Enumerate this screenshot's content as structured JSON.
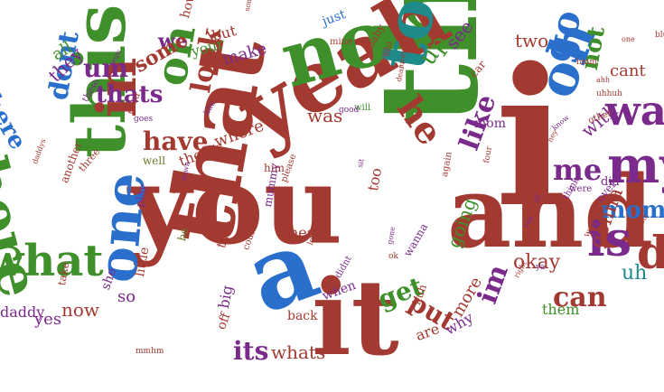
{
  "palette": {
    "red": "#a33a31",
    "green": "#3f8f2a",
    "blue": "#2a6fcc",
    "purple": "#7a2a8a",
    "teal": "#1f8a8a",
    "olive": "#6a7a2a",
    "darkred": "#7a2a2a",
    "navy": "#2a3f8f"
  },
  "words": [
    {
      "t": "i",
      "c": "red"
    },
    {
      "t": "the",
      "c": "green"
    },
    {
      "t": "and",
      "c": "red"
    },
    {
      "t": "you",
      "c": "red"
    },
    {
      "t": "a",
      "c": "blue"
    },
    {
      "t": "it",
      "c": "red"
    },
    {
      "t": "yeah",
      "c": "red"
    },
    {
      "t": "no",
      "c": "green"
    },
    {
      "t": "that",
      "c": "red"
    },
    {
      "t": "this",
      "c": "green"
    },
    {
      "t": "to",
      "c": "teal"
    },
    {
      "t": "oh",
      "c": "blue"
    },
    {
      "t": "one",
      "c": "blue"
    },
    {
      "t": "in",
      "c": "red"
    },
    {
      "t": "there",
      "c": "green"
    },
    {
      "t": "my",
      "c": "purple"
    },
    {
      "t": "is",
      "c": "purple"
    },
    {
      "t": "what",
      "c": "green"
    },
    {
      "t": "do",
      "c": "red"
    },
    {
      "t": "on",
      "c": "green"
    },
    {
      "t": "go",
      "c": "blue"
    },
    {
      "t": "he",
      "c": "red"
    },
    {
      "t": "want",
      "c": "purple"
    },
    {
      "t": "have",
      "c": "red"
    },
    {
      "t": "like",
      "c": "purple"
    },
    {
      "t": "me",
      "c": "purple"
    },
    {
      "t": "look",
      "c": "red"
    },
    {
      "t": "we",
      "c": "purple"
    },
    {
      "t": "dont",
      "c": "blue"
    },
    {
      "t": "thats",
      "c": "purple"
    },
    {
      "t": "um",
      "c": "purple"
    },
    {
      "t": "can",
      "c": "red"
    },
    {
      "t": "not",
      "c": "green"
    },
    {
      "t": "mommy",
      "c": "blue"
    },
    {
      "t": "get",
      "c": "green"
    },
    {
      "t": "put",
      "c": "red"
    },
    {
      "t": "its",
      "c": "purple"
    },
    {
      "t": "im",
      "c": "purple"
    },
    {
      "t": "here",
      "c": "blue"
    },
    {
      "t": "some",
      "c": "red"
    },
    {
      "t": "up",
      "c": "green"
    },
    {
      "t": "your",
      "c": "green"
    },
    {
      "t": "where",
      "c": "red"
    },
    {
      "t": "was",
      "c": "red"
    },
    {
      "t": "two",
      "c": "red"
    },
    {
      "t": "see",
      "c": "purple"
    },
    {
      "t": "going",
      "c": "green"
    },
    {
      "t": "okay",
      "c": "red"
    },
    {
      "t": "uh",
      "c": "teal"
    },
    {
      "t": "gonna",
      "c": "red"
    },
    {
      "t": "whats",
      "c": "red"
    },
    {
      "t": "now",
      "c": "red"
    },
    {
      "t": "more",
      "c": "red"
    },
    {
      "t": "all",
      "c": "green"
    },
    {
      "t": "they",
      "c": "purple"
    },
    {
      "t": "yes",
      "c": "purple"
    },
    {
      "t": "make",
      "c": "purple"
    },
    {
      "t": "but",
      "c": "red"
    },
    {
      "t": "with",
      "c": "purple"
    },
    {
      "t": "cant",
      "c": "red"
    },
    {
      "t": "them",
      "c": "green"
    },
    {
      "t": "are",
      "c": "red"
    },
    {
      "t": "why",
      "c": "purple"
    },
    {
      "t": "back",
      "c": "red"
    },
    {
      "t": "big",
      "c": "purple"
    },
    {
      "t": "off",
      "c": "red"
    },
    {
      "t": "so",
      "c": "purple"
    },
    {
      "t": "theres",
      "c": "red"
    },
    {
      "t": "hes",
      "c": "red"
    },
    {
      "t": "when",
      "c": "purple"
    },
    {
      "t": "mom",
      "c": "purple"
    },
    {
      "t": "did",
      "c": "purple"
    },
    {
      "t": "just",
      "c": "blue"
    },
    {
      "t": "how",
      "c": "red"
    },
    {
      "t": "take",
      "c": "red"
    },
    {
      "t": "she",
      "c": "purple"
    },
    {
      "t": "little",
      "c": "red"
    },
    {
      "t": "then",
      "c": "red"
    },
    {
      "t": "play",
      "c": "purple"
    },
    {
      "t": "too",
      "c": "red"
    },
    {
      "t": "well",
      "c": "olive"
    },
    {
      "t": "him",
      "c": "red"
    },
    {
      "t": "mummy",
      "c": "purple"
    },
    {
      "t": "be",
      "c": "olive"
    },
    {
      "t": "daddy",
      "c": "purple"
    },
    {
      "t": "car",
      "c": "red"
    },
    {
      "t": "baby",
      "c": "red"
    },
    {
      "t": "mine",
      "c": "red"
    },
    {
      "t": "huh",
      "c": "red"
    },
    {
      "t": "way",
      "c": "red"
    },
    {
      "t": "over",
      "c": "purple"
    },
    {
      "t": "wanna",
      "c": "purple"
    },
    {
      "t": "need",
      "c": "red"
    },
    {
      "t": "these",
      "c": "purple"
    },
    {
      "t": "another",
      "c": "red"
    },
    {
      "t": "three",
      "c": "red"
    },
    {
      "t": "were",
      "c": "purple"
    },
    {
      "t": "think",
      "c": "purple"
    },
    {
      "t": "other",
      "c": "red"
    },
    {
      "t": "again",
      "c": "red"
    },
    {
      "t": "something",
      "c": "red"
    },
    {
      "t": "please",
      "c": "red"
    },
    {
      "t": "lets",
      "c": "red"
    },
    {
      "t": "didnt",
      "c": "purple"
    },
    {
      "t": "could",
      "c": "red"
    },
    {
      "t": "ill",
      "c": "purple"
    },
    {
      "t": "will",
      "c": "green"
    },
    {
      "t": "good",
      "c": "purple"
    },
    {
      "t": "goes",
      "c": "purple"
    },
    {
      "t": "four",
      "c": "red"
    },
    {
      "t": "hmm",
      "c": "red"
    },
    {
      "t": "uhhuh",
      "c": "red"
    },
    {
      "t": "eat",
      "c": "red"
    },
    {
      "t": "said",
      "c": "red"
    },
    {
      "t": "his",
      "c": "red"
    },
    {
      "t": "ok",
      "c": "red"
    },
    {
      "t": "red",
      "c": "red"
    },
    {
      "t": "blue",
      "c": "red"
    },
    {
      "t": "gone",
      "c": "purple"
    },
    {
      "t": "sit",
      "c": "purple"
    },
    {
      "t": "down",
      "c": "purple"
    },
    {
      "t": "away",
      "c": "red"
    },
    {
      "t": "right",
      "c": "red"
    },
    {
      "t": "know",
      "c": "purple"
    },
    {
      "t": "one",
      "c": "red"
    },
    {
      "t": "dear",
      "c": "red"
    },
    {
      "t": "yep",
      "c": "purple"
    },
    {
      "t": "mmhm",
      "c": "red"
    },
    {
      "t": "oops",
      "c": "purple"
    },
    {
      "t": "does",
      "c": "red"
    },
    {
      "t": "ahh",
      "c": "red"
    },
    {
      "t": "hey",
      "c": "red"
    },
    {
      "t": "daddys",
      "c": "red"
    },
    {
      "t": "ya",
      "c": "purple"
    },
    {
      "t": "like",
      "c": "purple"
    }
  ]
}
